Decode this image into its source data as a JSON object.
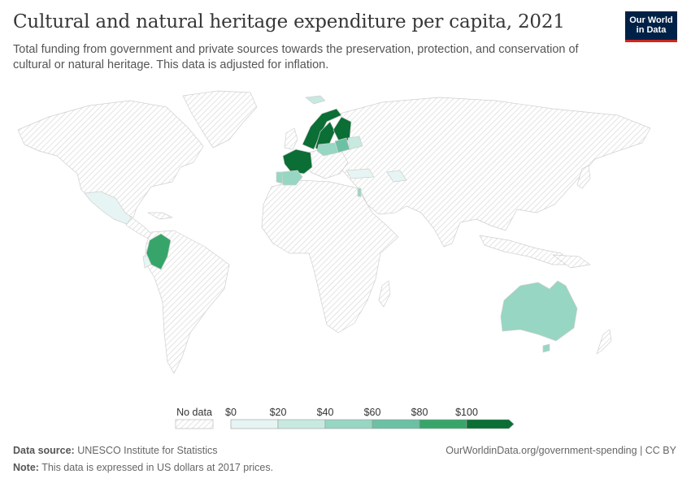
{
  "header": {
    "title": "Cultural and natural heritage expenditure per capita, 2021",
    "subtitle": "Total funding from government and private sources towards the preservation, protection, and conservation of cultural or natural heritage. This data is adjusted for inflation.",
    "logo_line1": "Our World",
    "logo_line2": "in Data"
  },
  "legend": {
    "no_data_label": "No data",
    "bins": [
      {
        "label": "$0",
        "color": "#e6f5f3"
      },
      {
        "label": "$20",
        "color": "#c7e9e0"
      },
      {
        "label": "$40",
        "color": "#97d6c2"
      },
      {
        "label": "$60",
        "color": "#6cc0a4"
      },
      {
        "label": "$80",
        "color": "#37a56a"
      },
      {
        "label": "$100",
        "color": "#0b6e35"
      }
    ]
  },
  "map_data": {
    "nodata_pattern": "hatched",
    "countries": [
      {
        "name": "Mexico",
        "bin": 1
      },
      {
        "name": "Colombia",
        "bin": 4
      },
      {
        "name": "Ecuador",
        "bin": 1
      },
      {
        "name": "Iceland",
        "bin": 2
      },
      {
        "name": "Norway",
        "bin": 5
      },
      {
        "name": "Sweden",
        "bin": 5
      },
      {
        "name": "Finland",
        "bin": 5
      },
      {
        "name": "France",
        "bin": 5
      },
      {
        "name": "Spain",
        "bin": 3
      },
      {
        "name": "Portugal",
        "bin": 3
      },
      {
        "name": "Poland",
        "bin": 3
      },
      {
        "name": "Belarus",
        "bin": 2
      },
      {
        "name": "Lithuania",
        "bin": 4
      },
      {
        "name": "Turkey",
        "bin": 1
      },
      {
        "name": "Israel",
        "bin": 3
      },
      {
        "name": "Azerbaijan",
        "bin": 1
      },
      {
        "name": "Australia",
        "bin": 2
      }
    ]
  },
  "footer": {
    "source_label": "Data source:",
    "source_text": "UNESCO Institute for Statistics",
    "url_text": "OurWorldinData.org/government-spending | CC BY",
    "note_label": "Note:",
    "note_text": "This data is expressed in US dollars at 2017 prices."
  }
}
